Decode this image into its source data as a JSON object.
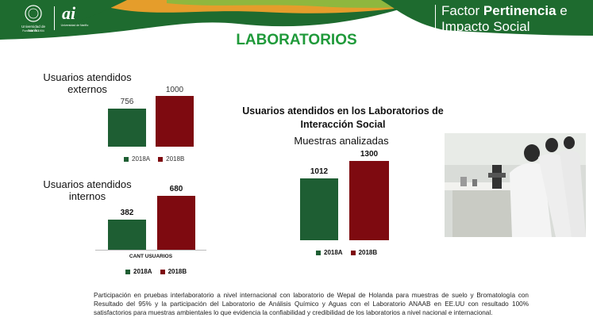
{
  "header": {
    "univ_logo_text": "Universidad de Nariño",
    "univ_logo_sub": "Fundada en 1904",
    "ai_logo": "ai",
    "ai_logo_sub": "Universidad de Nariño",
    "factor_line1_a": "Factor ",
    "factor_line1_b": "Pertinencia",
    "factor_line1_c": " e",
    "factor_line2": "Impacto Social"
  },
  "page_title": "LABORATORIOS",
  "colors": {
    "series_2018A": "#1e5e33",
    "series_2018B": "#7e0a10",
    "title_green": "#1f9a3a"
  },
  "chart_data": [
    {
      "type": "bar",
      "title": "Usuarios atendidos externos",
      "title_line1": "Usuarios atendidos",
      "title_line2": "externos",
      "series": [
        {
          "name": "2018A",
          "values": [
            756
          ]
        },
        {
          "name": "2018B",
          "values": [
            1000
          ]
        }
      ],
      "value_labels": [
        "756",
        "1000"
      ],
      "legend": [
        "2018A",
        "2018B"
      ]
    },
    {
      "type": "bar",
      "title": "Usuarios atendidos internos",
      "title_line1": "Usuarios atendidos",
      "title_line2": "internos",
      "xlabel": "CANT USUARIOS",
      "series": [
        {
          "name": "2018A",
          "values": [
            382
          ]
        },
        {
          "name": "2018B",
          "values": [
            680
          ]
        }
      ],
      "value_labels": [
        "382",
        "680"
      ],
      "legend": [
        "2018A",
        "2018B"
      ]
    },
    {
      "type": "bar",
      "title": "Muestras analizadas",
      "series": [
        {
          "name": "2018A",
          "values": [
            1012
          ]
        },
        {
          "name": "2018B",
          "values": [
            1300
          ]
        }
      ],
      "value_labels": [
        "1012",
        "1300"
      ],
      "legend": [
        "2018A",
        "2018B"
      ]
    }
  ],
  "section_title_line1": "Usuarios atendidos en los Laboratorios de",
  "section_title_line2": "Interacción Social",
  "note": "Participación en pruebas interlaboratorio a nivel internacional con laboratorio de Wepal de Holanda  para muestras de suelo y Bromatología con Resultado del 95% y la participación del Laboratorio de Análisis Químico y Aguas  con el Laboratorio ANAAB en EE.UU con resultado 100% satisfactorios para muestras ambientales lo que evidencia la confiabilidad y credibilidad de los laboratorios a nivel nacional e internacional."
}
